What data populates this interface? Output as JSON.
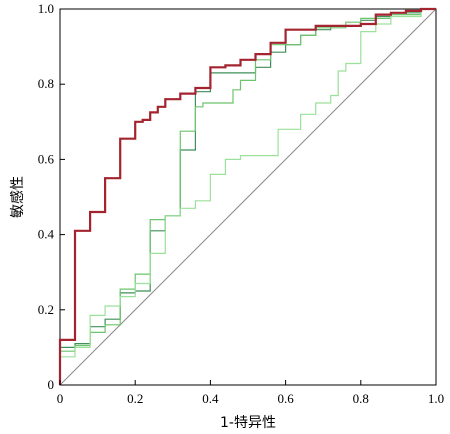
{
  "chart_data": {
    "type": "line",
    "xlabel": "1-特异性",
    "ylabel": "敏感性",
    "xlim": [
      0,
      1
    ],
    "ylim": [
      0,
      1
    ],
    "xticks": [
      "0",
      "0.2",
      "0.4",
      "0.6",
      "0.8",
      "1.0"
    ],
    "yticks": [
      "0",
      "0.2",
      "0.4",
      "0.6",
      "0.8",
      "1.0"
    ],
    "grid": false,
    "legend": "none",
    "series": [
      {
        "color": "#3f8f5a",
        "width": 1.2,
        "points": [
          [
            0,
            0
          ],
          [
            0,
            0.1
          ],
          [
            0.04,
            0.1
          ],
          [
            0.04,
            0.11
          ],
          [
            0.08,
            0.11
          ],
          [
            0.08,
            0.155
          ],
          [
            0.12,
            0.155
          ],
          [
            0.12,
            0.175
          ],
          [
            0.16,
            0.175
          ],
          [
            0.16,
            0.245
          ],
          [
            0.2,
            0.245
          ],
          [
            0.2,
            0.25
          ],
          [
            0.24,
            0.25
          ],
          [
            0.24,
            0.41
          ],
          [
            0.28,
            0.41
          ],
          [
            0.28,
            0.45
          ],
          [
            0.32,
            0.45
          ],
          [
            0.32,
            0.625
          ],
          [
            0.36,
            0.625
          ],
          [
            0.36,
            0.78
          ],
          [
            0.4,
            0.78
          ],
          [
            0.4,
            0.83
          ],
          [
            0.52,
            0.83
          ],
          [
            0.52,
            0.845
          ],
          [
            0.56,
            0.845
          ],
          [
            0.56,
            0.885
          ],
          [
            0.6,
            0.885
          ],
          [
            0.6,
            0.905
          ],
          [
            0.64,
            0.905
          ],
          [
            0.64,
            0.93
          ],
          [
            0.68,
            0.93
          ],
          [
            0.68,
            0.945
          ],
          [
            0.72,
            0.945
          ],
          [
            0.72,
            0.955
          ],
          [
            0.8,
            0.955
          ],
          [
            0.8,
            0.97
          ],
          [
            0.84,
            0.97
          ],
          [
            0.84,
            0.98
          ],
          [
            0.88,
            0.98
          ],
          [
            0.88,
            0.99
          ],
          [
            0.96,
            0.99
          ],
          [
            0.96,
            1.0
          ],
          [
            1.0,
            1.0
          ]
        ]
      },
      {
        "color": "#6cc46c",
        "width": 1.2,
        "points": [
          [
            0,
            0
          ],
          [
            0,
            0.09
          ],
          [
            0.04,
            0.09
          ],
          [
            0.04,
            0.105
          ],
          [
            0.08,
            0.105
          ],
          [
            0.08,
            0.14
          ],
          [
            0.12,
            0.14
          ],
          [
            0.12,
            0.16
          ],
          [
            0.16,
            0.16
          ],
          [
            0.16,
            0.255
          ],
          [
            0.2,
            0.255
          ],
          [
            0.2,
            0.295
          ],
          [
            0.24,
            0.295
          ],
          [
            0.24,
            0.44
          ],
          [
            0.28,
            0.44
          ],
          [
            0.28,
            0.45
          ],
          [
            0.32,
            0.45
          ],
          [
            0.32,
            0.675
          ],
          [
            0.36,
            0.675
          ],
          [
            0.36,
            0.74
          ],
          [
            0.38,
            0.74
          ],
          [
            0.38,
            0.75
          ],
          [
            0.46,
            0.75
          ],
          [
            0.46,
            0.785
          ],
          [
            0.48,
            0.785
          ],
          [
            0.48,
            0.81
          ],
          [
            0.52,
            0.81
          ],
          [
            0.52,
            0.865
          ],
          [
            0.56,
            0.865
          ],
          [
            0.56,
            0.905
          ],
          [
            0.64,
            0.905
          ],
          [
            0.64,
            0.93
          ],
          [
            0.68,
            0.93
          ],
          [
            0.68,
            0.95
          ],
          [
            0.76,
            0.95
          ],
          [
            0.76,
            0.965
          ],
          [
            0.8,
            0.965
          ],
          [
            0.8,
            0.975
          ],
          [
            0.88,
            0.975
          ],
          [
            0.88,
            0.985
          ],
          [
            0.96,
            0.985
          ],
          [
            0.96,
            1.0
          ],
          [
            1.0,
            1.0
          ]
        ]
      },
      {
        "color": "#9be09b",
        "width": 1.2,
        "points": [
          [
            0,
            0
          ],
          [
            0,
            0.075
          ],
          [
            0.04,
            0.075
          ],
          [
            0.04,
            0.1
          ],
          [
            0.08,
            0.1
          ],
          [
            0.08,
            0.185
          ],
          [
            0.12,
            0.185
          ],
          [
            0.12,
            0.21
          ],
          [
            0.16,
            0.21
          ],
          [
            0.16,
            0.235
          ],
          [
            0.2,
            0.235
          ],
          [
            0.2,
            0.27
          ],
          [
            0.24,
            0.27
          ],
          [
            0.24,
            0.35
          ],
          [
            0.28,
            0.35
          ],
          [
            0.28,
            0.45
          ],
          [
            0.32,
            0.45
          ],
          [
            0.32,
            0.47
          ],
          [
            0.36,
            0.47
          ],
          [
            0.36,
            0.49
          ],
          [
            0.4,
            0.49
          ],
          [
            0.4,
            0.56
          ],
          [
            0.44,
            0.56
          ],
          [
            0.44,
            0.6
          ],
          [
            0.48,
            0.6
          ],
          [
            0.48,
            0.61
          ],
          [
            0.58,
            0.61
          ],
          [
            0.58,
            0.68
          ],
          [
            0.64,
            0.68
          ],
          [
            0.64,
            0.72
          ],
          [
            0.68,
            0.72
          ],
          [
            0.68,
            0.75
          ],
          [
            0.72,
            0.75
          ],
          [
            0.72,
            0.77
          ],
          [
            0.74,
            0.77
          ],
          [
            0.74,
            0.835
          ],
          [
            0.76,
            0.835
          ],
          [
            0.76,
            0.855
          ],
          [
            0.8,
            0.855
          ],
          [
            0.8,
            0.94
          ],
          [
            0.84,
            0.94
          ],
          [
            0.84,
            0.96
          ],
          [
            0.88,
            0.96
          ],
          [
            0.88,
            0.98
          ],
          [
            0.96,
            0.98
          ],
          [
            0.96,
            1.0
          ],
          [
            1.0,
            1.0
          ]
        ]
      },
      {
        "color": "#a3232f",
        "width": 2.2,
        "points": [
          [
            0,
            0
          ],
          [
            0,
            0.12
          ],
          [
            0.04,
            0.12
          ],
          [
            0.04,
            0.41
          ],
          [
            0.08,
            0.41
          ],
          [
            0.08,
            0.46
          ],
          [
            0.12,
            0.46
          ],
          [
            0.12,
            0.55
          ],
          [
            0.16,
            0.55
          ],
          [
            0.16,
            0.655
          ],
          [
            0.2,
            0.655
          ],
          [
            0.2,
            0.7
          ],
          [
            0.22,
            0.7
          ],
          [
            0.22,
            0.705
          ],
          [
            0.24,
            0.705
          ],
          [
            0.24,
            0.725
          ],
          [
            0.26,
            0.725
          ],
          [
            0.26,
            0.74
          ],
          [
            0.28,
            0.74
          ],
          [
            0.28,
            0.76
          ],
          [
            0.32,
            0.76
          ],
          [
            0.32,
            0.775
          ],
          [
            0.36,
            0.775
          ],
          [
            0.36,
            0.79
          ],
          [
            0.4,
            0.79
          ],
          [
            0.4,
            0.845
          ],
          [
            0.44,
            0.845
          ],
          [
            0.44,
            0.85
          ],
          [
            0.48,
            0.85
          ],
          [
            0.48,
            0.865
          ],
          [
            0.52,
            0.865
          ],
          [
            0.52,
            0.88
          ],
          [
            0.56,
            0.88
          ],
          [
            0.56,
            0.91
          ],
          [
            0.6,
            0.91
          ],
          [
            0.6,
            0.945
          ],
          [
            0.68,
            0.945
          ],
          [
            0.68,
            0.955
          ],
          [
            0.8,
            0.955
          ],
          [
            0.8,
            0.96
          ],
          [
            0.84,
            0.96
          ],
          [
            0.84,
            0.985
          ],
          [
            0.88,
            0.985
          ],
          [
            0.88,
            0.99
          ],
          [
            0.92,
            0.99
          ],
          [
            0.92,
            0.995
          ],
          [
            0.96,
            0.995
          ],
          [
            0.96,
            1.0
          ],
          [
            1.0,
            1.0
          ]
        ]
      }
    ]
  }
}
